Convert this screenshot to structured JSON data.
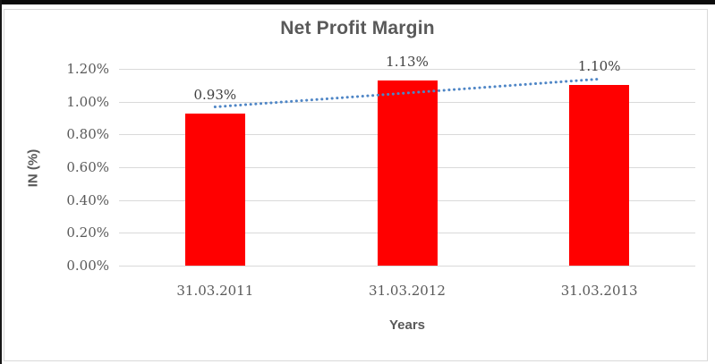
{
  "chart_data": {
    "type": "bar",
    "title": "Net Profit Margin",
    "xlabel": "Years",
    "ylabel": "IN (%)",
    "categories": [
      "31.03.2011",
      "31.03.2012",
      "31.03.2013"
    ],
    "values": [
      0.93,
      1.13,
      1.1
    ],
    "data_labels": [
      "0.93%",
      "1.13%",
      "1.10%"
    ],
    "y_ticks": [
      {
        "value": 0.0,
        "label": "0.00%"
      },
      {
        "value": 0.2,
        "label": "0.20%"
      },
      {
        "value": 0.4,
        "label": "0.40%"
      },
      {
        "value": 0.6,
        "label": "0.60%"
      },
      {
        "value": 0.8,
        "label": "0.80%"
      },
      {
        "value": 1.0,
        "label": "1.00%"
      },
      {
        "value": 1.2,
        "label": "1.20%"
      }
    ],
    "ylim": [
      0,
      1.2
    ],
    "grid": true,
    "legend": "none",
    "bar_color": "#ff0000",
    "trendline": {
      "type": "linear",
      "style": "dotted",
      "color": "#4f86c6",
      "start_value": 0.968,
      "end_value": 1.138
    }
  }
}
